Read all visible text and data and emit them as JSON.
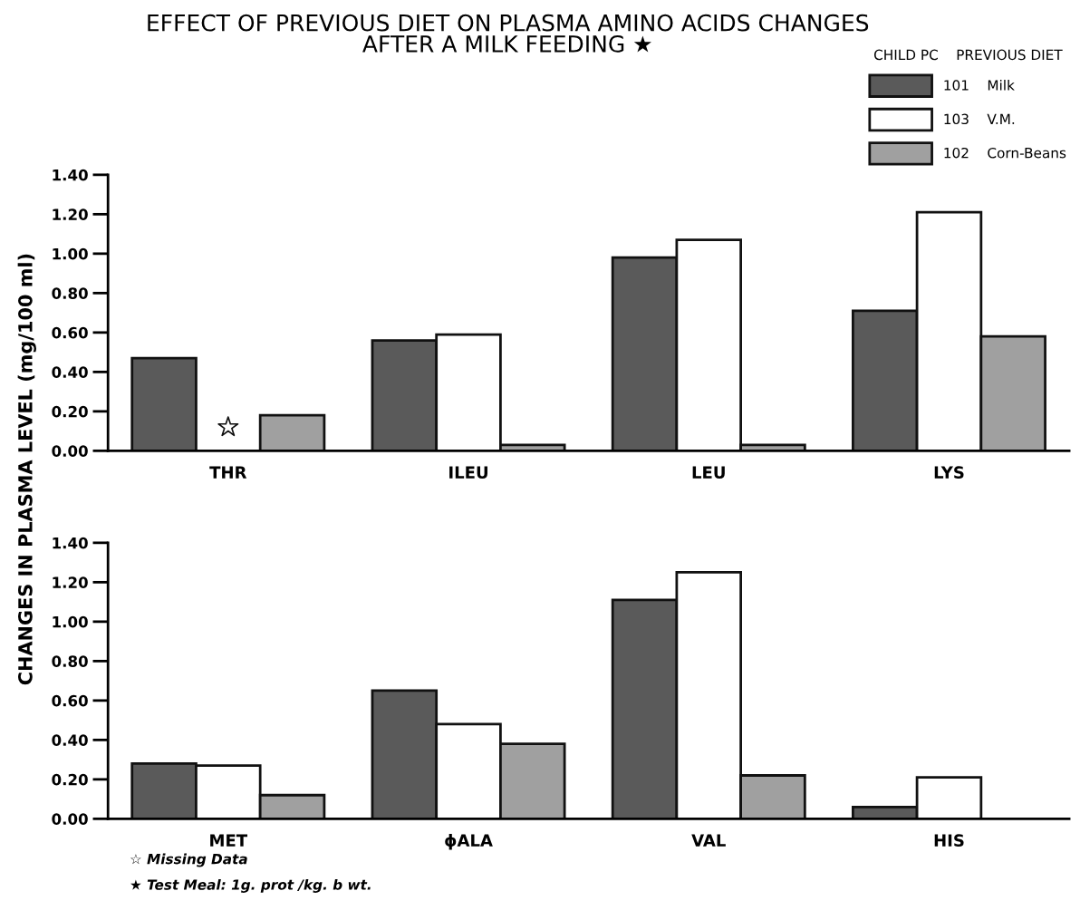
{
  "chart_data": [
    {
      "type": "bar",
      "title": "EFFECT OF PREVIOUS DIET ON PLASMA AMINO ACIDS CHANGES\nAFTER A MILK FEEDING ★",
      "ylabel": "CHANGES IN PLASMA LEVEL (mg/100 ml)",
      "legend_title": "CHILD PC    PREVIOUS DIET",
      "legend": "top right",
      "categories": [
        "THR",
        "ILEU",
        "LEU",
        "LYS"
      ],
      "series": [
        {
          "name": "101    Milk",
          "color": "#5a5a5a",
          "values": [
            0.47,
            0.56,
            0.98,
            0.71
          ]
        },
        {
          "name": "103    V.M.",
          "color": "#ffffff",
          "values": [
            null,
            0.59,
            1.07,
            1.21
          ]
        },
        {
          "name": "102    Corn-Beans",
          "color": "#a0a0a0",
          "values": [
            0.18,
            0.03,
            0.03,
            0.58
          ]
        }
      ],
      "ylim": [
        0,
        1.4
      ],
      "yticks": [
        {
          "value": 0,
          "label": "0.00"
        },
        {
          "value": 0.2,
          "label": "0.20"
        },
        {
          "value": 0.4,
          "label": "0.40"
        },
        {
          "value": 0.6,
          "label": "0.60"
        },
        {
          "value": 0.8,
          "label": "0.80"
        },
        {
          "value": 1.0,
          "label": "1.00"
        },
        {
          "value": 1.2,
          "label": "1.20"
        },
        {
          "value": 1.4,
          "label": "1.40"
        }
      ]
    },
    {
      "type": "bar",
      "categories": [
        "MET",
        "ϕALA",
        "VAL",
        "HIS"
      ],
      "series": [
        {
          "color": "#5a5a5a",
          "values": [
            0.28,
            0.65,
            1.11,
            0.06
          ]
        },
        {
          "color": "#ffffff",
          "values": [
            0.27,
            0.48,
            1.25,
            0.21
          ]
        },
        {
          "color": "#a0a0a0",
          "values": [
            0.12,
            0.38,
            0.22,
            0.0
          ]
        }
      ],
      "ylim": [
        0,
        1.4
      ],
      "yticks": [
        {
          "value": 0,
          "label": "0.00"
        },
        {
          "value": 0.2,
          "label": "0.20"
        },
        {
          "value": 0.4,
          "label": "0.40"
        },
        {
          "value": 0.6,
          "label": "0.60"
        },
        {
          "value": 0.8,
          "label": "0.80"
        },
        {
          "value": 1.0,
          "label": "1.00"
        },
        {
          "value": 1.2,
          "label": "1.20"
        },
        {
          "value": 1.4,
          "label": "1.40"
        }
      ],
      "annotations": [
        "☆ Missing Data",
        "★ Test Meal: 1g. prot /kg. b wt."
      ]
    }
  ]
}
